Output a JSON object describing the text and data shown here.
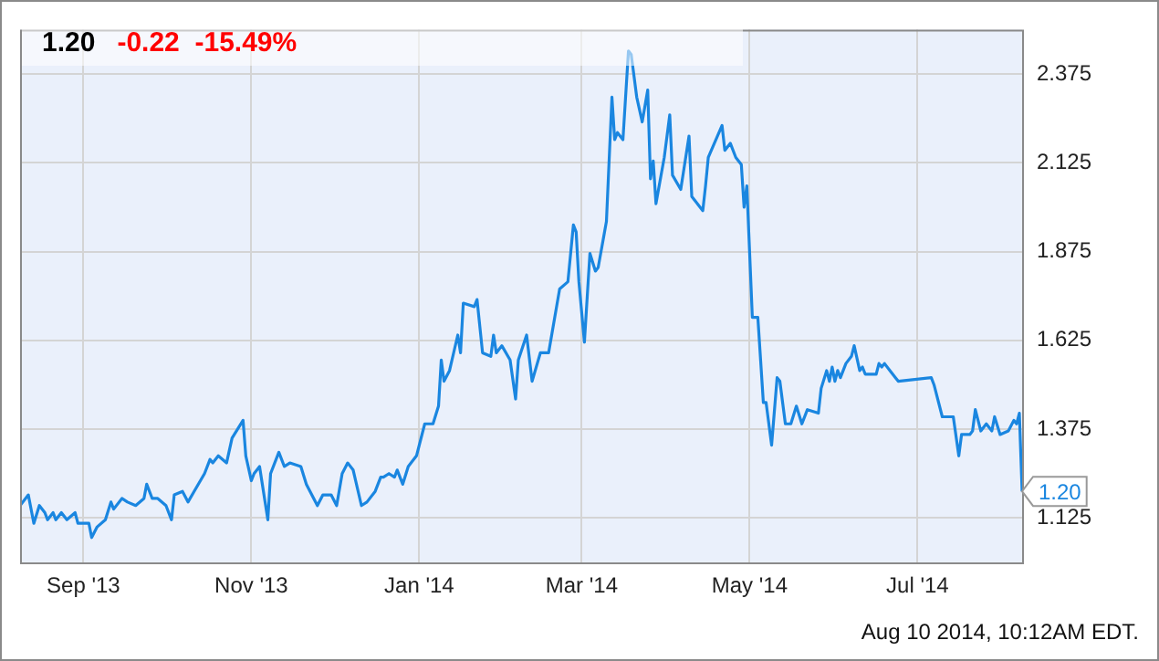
{
  "chart_data": {
    "type": "line",
    "title": "1.20",
    "subtitle": "-0.22  -15.49%",
    "series": [
      {
        "color": "#1a86e0",
        "x": [
          "2013-08-09",
          "2013-08-12",
          "2013-08-14",
          "2013-08-16",
          "2013-08-18",
          "2013-08-19",
          "2013-08-21",
          "2013-08-22",
          "2013-08-24",
          "2013-08-26",
          "2013-08-29",
          "2013-08-30",
          "2013-09-03",
          "2013-09-04",
          "2013-09-06",
          "2013-09-09",
          "2013-09-11",
          "2013-09-12",
          "2013-09-15",
          "2013-09-17",
          "2013-09-20",
          "2013-09-23",
          "2013-09-24",
          "2013-09-26",
          "2013-09-28",
          "2013-10-01",
          "2013-10-03",
          "2013-10-04",
          "2013-10-07",
          "2013-10-09",
          "2013-10-12",
          "2013-10-15",
          "2013-10-17",
          "2013-10-18",
          "2013-10-20",
          "2013-10-23",
          "2013-10-25",
          "2013-10-29",
          "2013-10-30",
          "2013-11-01",
          "2013-11-02",
          "2013-11-04",
          "2013-11-07",
          "2013-11-08",
          "2013-11-11",
          "2013-11-13",
          "2013-11-15",
          "2013-11-19",
          "2013-11-21",
          "2013-11-25",
          "2013-11-27",
          "2013-11-30",
          "2013-12-02",
          "2013-12-04",
          "2013-12-06",
          "2013-12-08",
          "2013-12-11",
          "2013-12-13",
          "2013-12-16",
          "2013-12-18",
          "2013-12-19",
          "2013-12-21",
          "2013-12-23",
          "2013-12-24",
          "2013-12-26",
          "2013-12-28",
          "2013-12-31",
          "2014-01-03",
          "2014-01-06",
          "2014-01-08",
          "2014-01-09",
          "2014-01-10",
          "2014-01-12",
          "2014-01-15",
          "2014-01-16",
          "2014-01-17",
          "2014-01-21",
          "2014-01-22",
          "2014-01-24",
          "2014-01-27",
          "2014-01-28",
          "2014-01-29",
          "2014-01-31",
          "2014-02-03",
          "2014-02-05",
          "2014-02-06",
          "2014-02-09",
          "2014-02-11",
          "2014-02-14",
          "2014-02-17",
          "2014-02-21",
          "2014-02-24",
          "2014-02-26",
          "2014-02-27",
          "2014-02-28",
          "2014-03-02",
          "2014-03-04",
          "2014-03-06",
          "2014-03-07",
          "2014-03-10",
          "2014-03-12",
          "2014-03-13",
          "2014-03-14",
          "2014-03-16",
          "2014-03-18",
          "2014-03-19",
          "2014-03-21",
          "2014-03-23",
          "2014-03-25",
          "2014-03-26",
          "2014-03-27",
          "2014-03-28",
          "2014-03-31",
          "2014-04-02",
          "2014-04-03",
          "2014-04-06",
          "2014-04-09",
          "2014-04-10",
          "2014-04-14",
          "2014-04-15",
          "2014-04-16",
          "2014-04-21",
          "2014-04-22",
          "2014-04-24",
          "2014-04-26",
          "2014-04-28",
          "2014-04-29",
          "2014-04-30",
          "2014-05-02",
          "2014-05-04",
          "2014-05-06",
          "2014-05-07",
          "2014-05-09",
          "2014-05-11",
          "2014-05-12",
          "2014-05-14",
          "2014-05-16",
          "2014-05-18",
          "2014-05-20",
          "2014-05-22",
          "2014-05-26",
          "2014-05-27",
          "2014-05-29",
          "2014-05-30",
          "2014-05-31",
          "2014-06-01",
          "2014-06-02",
          "2014-06-03",
          "2014-06-05",
          "2014-06-07",
          "2014-06-08",
          "2014-06-10",
          "2014-06-11",
          "2014-06-12",
          "2014-06-16",
          "2014-06-17",
          "2014-06-18",
          "2014-06-19",
          "2014-06-21",
          "2014-06-23",
          "2014-06-24",
          "2014-07-06",
          "2014-07-07",
          "2014-07-10",
          "2014-07-14",
          "2014-07-16",
          "2014-07-17",
          "2014-07-20",
          "2014-07-21",
          "2014-07-22",
          "2014-07-24",
          "2014-07-26",
          "2014-07-28",
          "2014-07-29",
          "2014-07-31",
          "2014-08-03",
          "2014-08-05",
          "2014-08-06",
          "2014-08-07",
          "2014-08-08"
        ],
        "values": [
          1.16,
          1.19,
          1.11,
          1.16,
          1.14,
          1.12,
          1.14,
          1.12,
          1.14,
          1.12,
          1.14,
          1.11,
          1.11,
          1.07,
          1.1,
          1.12,
          1.17,
          1.15,
          1.18,
          1.17,
          1.16,
          1.18,
          1.22,
          1.18,
          1.18,
          1.16,
          1.12,
          1.19,
          1.2,
          1.17,
          1.21,
          1.25,
          1.29,
          1.28,
          1.3,
          1.28,
          1.35,
          1.4,
          1.3,
          1.23,
          1.25,
          1.27,
          1.12,
          1.25,
          1.31,
          1.27,
          1.28,
          1.27,
          1.22,
          1.16,
          1.19,
          1.19,
          1.16,
          1.25,
          1.28,
          1.26,
          1.16,
          1.17,
          1.2,
          1.24,
          1.24,
          1.25,
          1.24,
          1.26,
          1.22,
          1.27,
          1.3,
          1.39,
          1.39,
          1.44,
          1.57,
          1.51,
          1.54,
          1.64,
          1.59,
          1.73,
          1.72,
          1.74,
          1.59,
          1.58,
          1.64,
          1.59,
          1.61,
          1.57,
          1.46,
          1.57,
          1.64,
          1.51,
          1.59,
          1.59,
          1.77,
          1.79,
          1.95,
          1.93,
          1.79,
          1.62,
          1.87,
          1.82,
          1.83,
          1.96,
          2.31,
          2.19,
          2.21,
          2.19,
          2.44,
          2.43,
          2.31,
          2.24,
          2.33,
          2.08,
          2.13,
          2.01,
          2.14,
          2.26,
          2.09,
          2.05,
          2.2,
          2.03,
          1.99,
          2.06,
          2.14,
          2.23,
          2.16,
          2.18,
          2.14,
          2.12,
          2.0,
          2.06,
          1.69,
          1.69,
          1.45,
          1.45,
          1.33,
          1.52,
          1.51,
          1.39,
          1.39,
          1.44,
          1.39,
          1.43,
          1.42,
          1.49,
          1.54,
          1.51,
          1.55,
          1.51,
          1.54,
          1.52,
          1.56,
          1.58,
          1.61,
          1.54,
          1.55,
          1.53,
          1.53,
          1.56,
          1.55,
          1.56,
          1.54,
          1.52,
          1.51,
          1.52,
          1.5,
          1.41,
          1.41,
          1.3,
          1.36,
          1.36,
          1.37,
          1.43,
          1.37,
          1.39,
          1.37,
          1.41,
          1.36,
          1.37,
          1.4,
          1.39,
          1.42,
          1.2
        ]
      }
    ],
    "xlim": [
      "2013-08-09",
      "2014-08-08"
    ],
    "xticks": [
      {
        "value": "2013-09-01",
        "label": "Sep '13"
      },
      {
        "value": "2013-11-01",
        "label": "Nov '13"
      },
      {
        "value": "2014-01-01",
        "label": "Jan '14"
      },
      {
        "value": "2014-03-01",
        "label": "Mar '14"
      },
      {
        "value": "2014-05-01",
        "label": "May '14"
      },
      {
        "value": "2014-07-01",
        "label": "Jul '14"
      }
    ],
    "ylim": [
      1.0,
      2.5
    ],
    "yticks": [
      1.125,
      1.375,
      1.625,
      1.875,
      2.125,
      2.375
    ],
    "grid": true,
    "legend": false,
    "marker": "none",
    "line_style": "solid",
    "annotations": [
      {
        "text": "1.20",
        "x": "2014-08-08",
        "y": 1.2
      },
      "Aug 10 2014, 10:12AM EDT."
    ]
  }
}
